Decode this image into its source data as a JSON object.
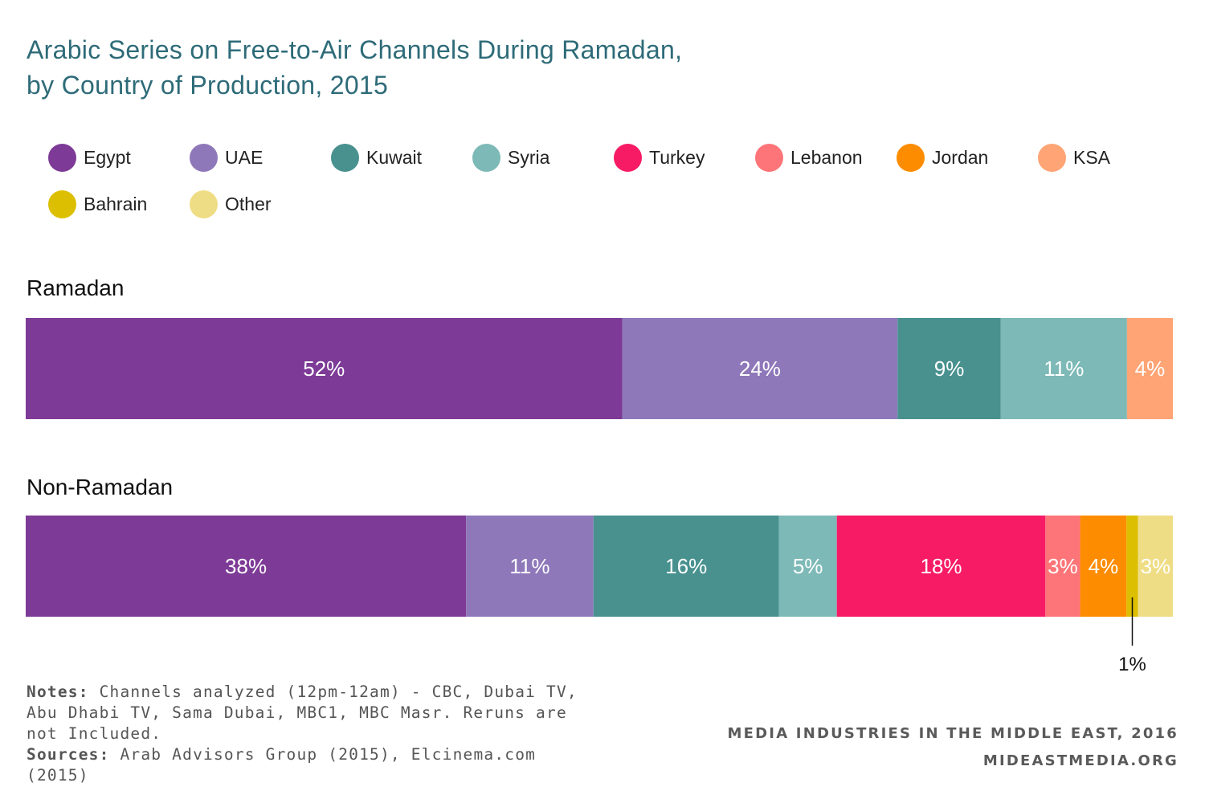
{
  "title_line1": "Arabic Series on Free-to-Air Channels During Ramadan,",
  "title_line2": "by Country of Production, 2015",
  "notes": {
    "notes_label": "Notes:",
    "notes_text": "Channels analyzed (12pm-12am) - CBC, Dubai TV, Abu Dhabi TV, Sama Dubai, MBC1, MBC Masr. Reruns are not Included.",
    "sources_label": "Sources:",
    "sources_text": "Arab Advisors Group (2015), Elcinema.com (2015)"
  },
  "credit": {
    "line1": "MEDIA INDUSTRIES IN THE MIDDLE EAST, 2016",
    "line2": "MIDEASTMEDIA.ORG"
  },
  "chart_data": {
    "type": "bar",
    "orientation": "horizontal",
    "stacked": true,
    "unit": "%",
    "xlim": [
      0,
      100
    ],
    "categories": [
      "Ramadan",
      "Non-Ramadan"
    ],
    "legend_position": "top",
    "series": [
      {
        "name": "Egypt",
        "color": "#7d3a96",
        "values": [
          52,
          38
        ],
        "labels": [
          "52%",
          "38%"
        ]
      },
      {
        "name": "UAE",
        "color": "#8e78b9",
        "values": [
          24,
          11
        ],
        "labels": [
          "24%",
          "11%"
        ]
      },
      {
        "name": "Kuwait",
        "color": "#48918f",
        "values": [
          9,
          16
        ],
        "labels": [
          "9%",
          "16%"
        ]
      },
      {
        "name": "Syria",
        "color": "#7db9b7",
        "values": [
          11,
          5
        ],
        "labels": [
          "11%",
          "5%"
        ]
      },
      {
        "name": "Turkey",
        "color": "#f71b66",
        "values": [
          0,
          18
        ],
        "labels": [
          "",
          "18%"
        ]
      },
      {
        "name": "Lebanon",
        "color": "#fd7578",
        "values": [
          0,
          3
        ],
        "labels": [
          "",
          "3%"
        ]
      },
      {
        "name": "Jordan",
        "color": "#fd8c00",
        "values": [
          0,
          4
        ],
        "labels": [
          "",
          "4%"
        ]
      },
      {
        "name": "KSA",
        "color": "#fea475",
        "values": [
          4,
          0
        ],
        "labels": [
          "4%",
          ""
        ]
      },
      {
        "name": "Bahrain",
        "color": "#dcbf00",
        "values": [
          0,
          1
        ],
        "labels": [
          "",
          "1%"
        ]
      },
      {
        "name": "Other",
        "color": "#efdd86",
        "values": [
          0,
          3
        ],
        "labels": [
          "",
          "3%"
        ]
      }
    ],
    "callouts": [
      {
        "category": "Non-Ramadan",
        "series": "Bahrain",
        "label": "1%"
      }
    ]
  }
}
